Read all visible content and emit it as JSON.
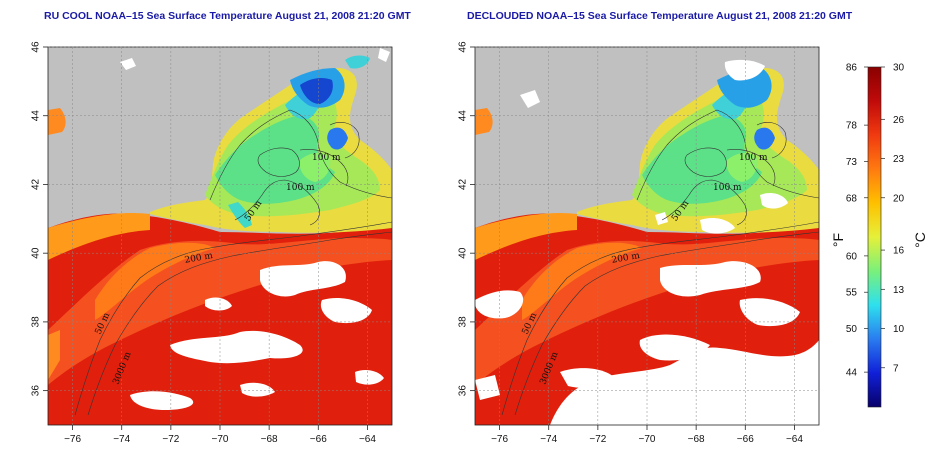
{
  "panels": [
    {
      "id": "rucool",
      "title": "RU COOL NOAA–15 Sea Surface Temperature August 21, 2008 21:20 GMT",
      "clouds": "dense"
    },
    {
      "id": "declouded",
      "title": "DECLOUDED NOAA–15 Sea Surface Temperature August 21, 2008 21:20 GMT",
      "clouds": "masked"
    }
  ],
  "axes": {
    "lon_ticks": [
      "−76",
      "−74",
      "−72",
      "−70",
      "−68",
      "−66",
      "−64"
    ],
    "lat_ticks": [
      "36",
      "38",
      "40",
      "42",
      "44",
      "46"
    ],
    "lon_range": [
      -77,
      -63
    ],
    "lat_range": [
      35,
      46
    ]
  },
  "contour_labels": [
    "100 m",
    "100 m",
    "50 m",
    "200 m",
    "50 m",
    "3000 m"
  ],
  "colorbar": {
    "celsius_label": "°C",
    "fahrenheit_label": "°F",
    "celsius_ticks": [
      "30",
      "26",
      "23",
      "20",
      "16",
      "13",
      "10",
      "7"
    ],
    "fahrenheit_ticks": [
      "86",
      "78",
      "73",
      "68",
      "60",
      "55",
      "50",
      "44"
    ],
    "colors": [
      "#08006a",
      "#1020d8",
      "#2a7cf0",
      "#2ee0ee",
      "#7af07a",
      "#e6f03a",
      "#ffc000",
      "#ff7a10",
      "#f03a10",
      "#c00a0a",
      "#8a0000"
    ]
  },
  "colors": {
    "land": "#c0c0c0",
    "cloud": "#ffffff",
    "title": "#1a1aa6"
  }
}
